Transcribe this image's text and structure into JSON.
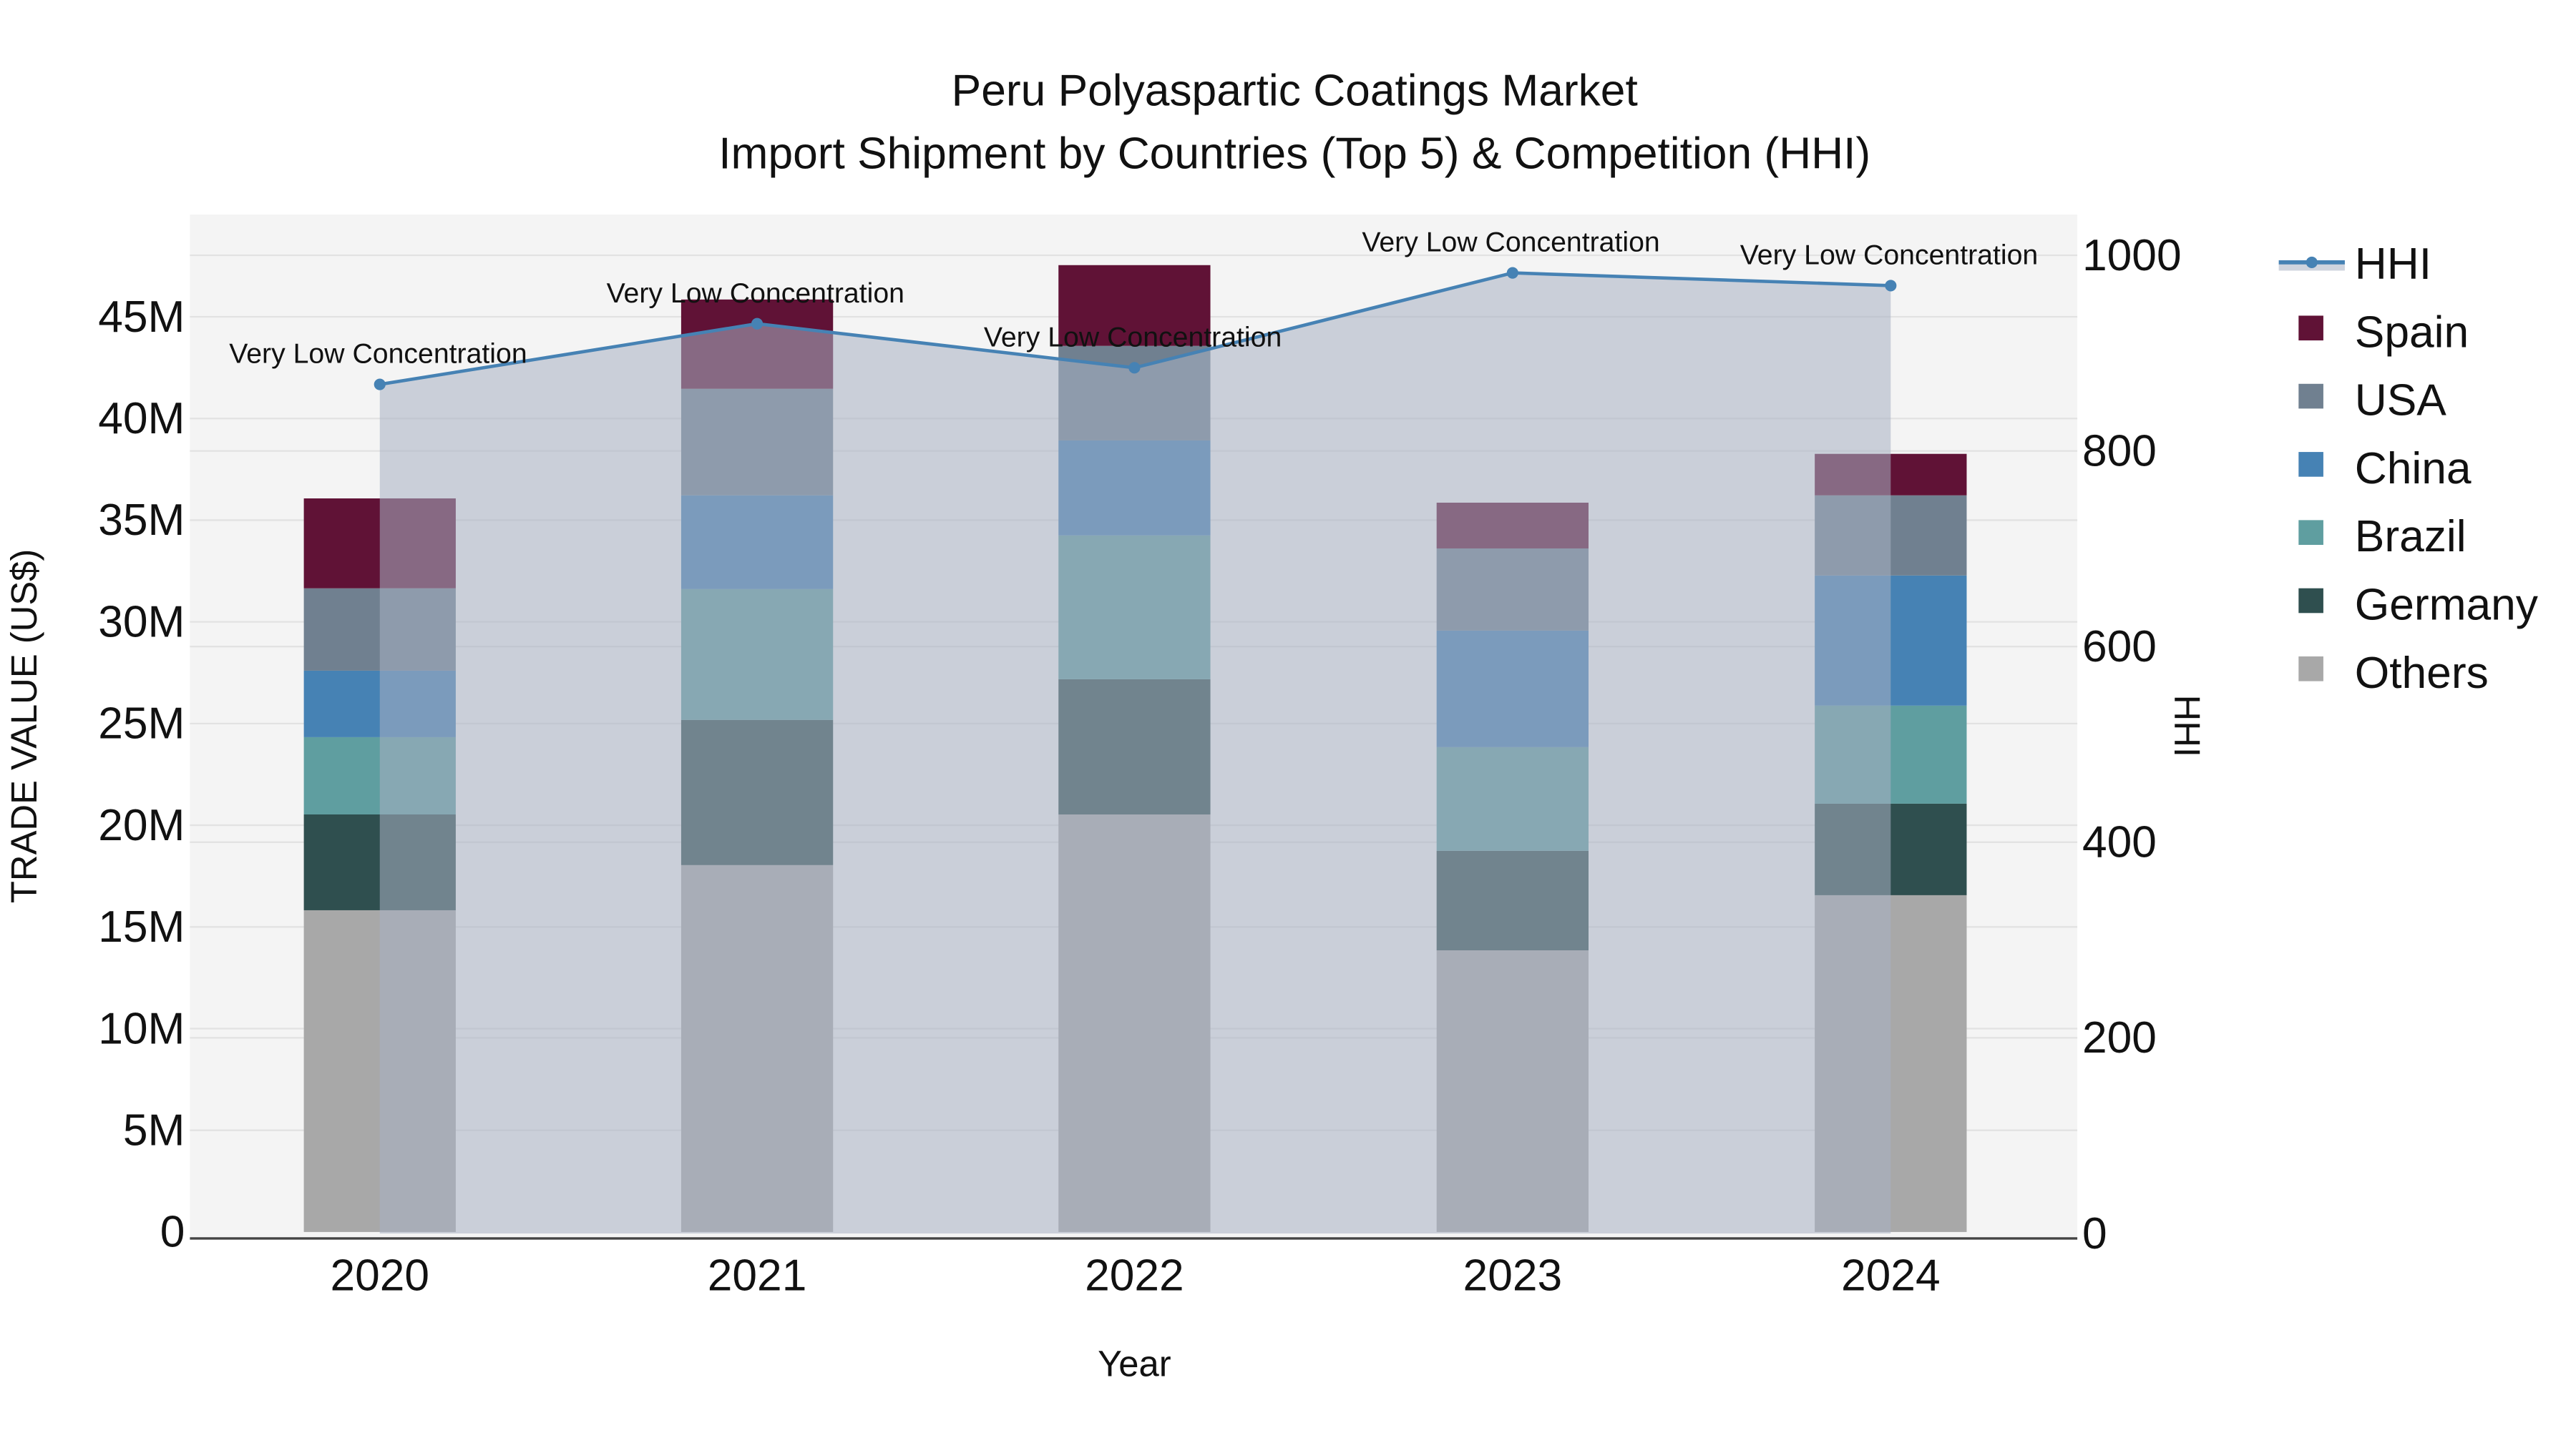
{
  "chart_data": {
    "type": "bar",
    "subtype": "stacked bar + line (secondary axis, filled area)",
    "title": "Peru Polyaspartic Coatings Market",
    "subtitle": "Import Shipment by Countries (Top 5) & Competition (HHI)",
    "xlabel": "Year",
    "ylabel": "TRADE VALUE (US$)",
    "y2label": "HHI",
    "categories": [
      "2020",
      "2021",
      "2022",
      "2023",
      "2024"
    ],
    "ylim": [
      0,
      50000000
    ],
    "y_ticks": [
      "0",
      "5M",
      "10M",
      "15M",
      "20M",
      "25M",
      "30M",
      "35M",
      "40M",
      "45M"
    ],
    "y2lim": [
      0,
      1050
    ],
    "y2_ticks": [
      "0",
      "200",
      "400",
      "600",
      "800",
      "1000"
    ],
    "grid": true,
    "legend_position": "right",
    "series": [
      {
        "name": "Others",
        "color": "#a8a8a8",
        "values": [
          15.82,
          18.04,
          20.53,
          13.85,
          16.56
        ]
      },
      {
        "name": "Germany",
        "color": "#2f4f4f",
        "values": [
          4.71,
          7.14,
          6.65,
          4.89,
          4.5
        ]
      },
      {
        "name": "Brazil",
        "color": "#5f9ea0",
        "values": [
          3.8,
          6.43,
          7.07,
          5.1,
          4.82
        ]
      },
      {
        "name": "China",
        "color": "#4682b4",
        "values": [
          3.27,
          4.61,
          4.67,
          5.73,
          6.4
        ]
      },
      {
        "name": "USA",
        "color": "#708090",
        "values": [
          4.05,
          5.24,
          4.65,
          4.04,
          3.94
        ]
      },
      {
        "name": "Spain",
        "color": "#601236",
        "values": [
          4.42,
          4.39,
          3.97,
          2.25,
          2.04
        ]
      }
    ],
    "value_unit": "US$ millions",
    "totals": [
      36.07,
      45.85,
      47.54,
      35.86,
      38.26
    ],
    "hhi": {
      "name": "HHI",
      "color": "#4682b4",
      "fill": "rgba(160,170,190,0.5)",
      "values": [
        868,
        930,
        885,
        982,
        969
      ],
      "annotations": [
        "Very Low Concentration",
        "Very Low Concentration",
        "Very Low Concentration",
        "Very Low Concentration",
        "Very Low Concentration"
      ]
    }
  },
  "legend": {
    "items": [
      {
        "label": "HHI",
        "kind": "line"
      },
      {
        "label": "Spain",
        "color": "#601236"
      },
      {
        "label": "USA",
        "color": "#708090"
      },
      {
        "label": "China",
        "color": "#4682b4"
      },
      {
        "label": "Brazil",
        "color": "#5f9ea0"
      },
      {
        "label": "Germany",
        "color": "#2f4f4f"
      },
      {
        "label": "Others",
        "color": "#a8a8a8"
      }
    ]
  }
}
